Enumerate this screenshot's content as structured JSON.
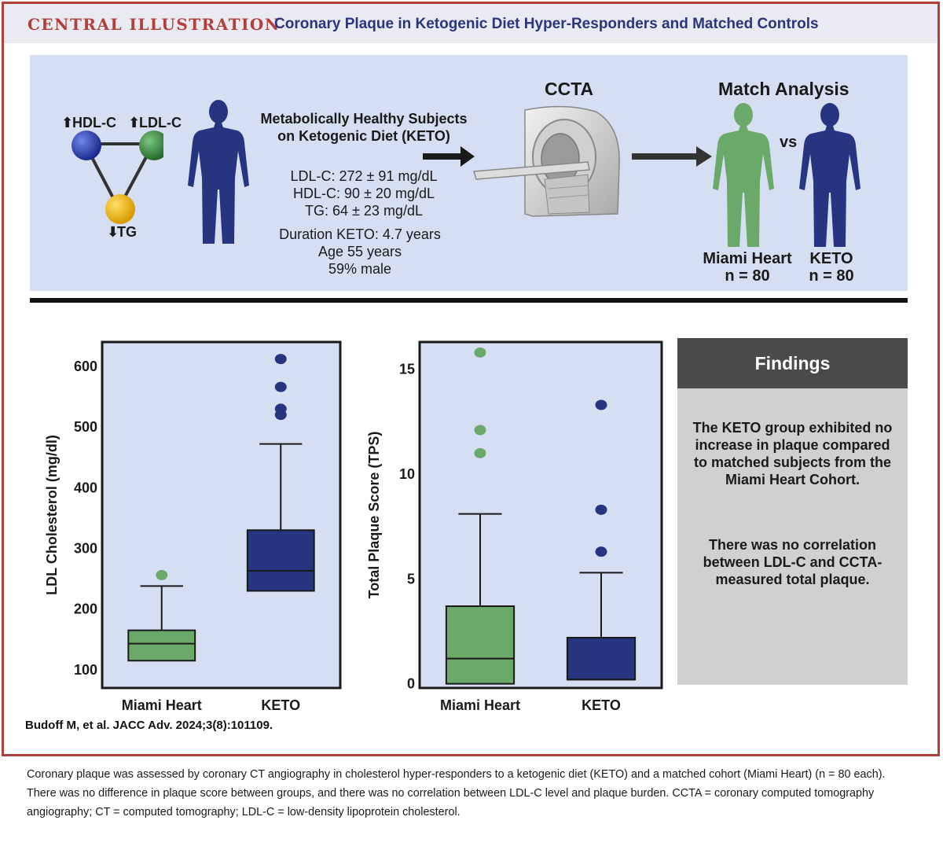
{
  "header": {
    "label": "CENTRAL ILLUSTRATION",
    "title": "Coronary Plaque in Ketogenic Diet Hyper-Responders and Matched Controls"
  },
  "top_panel": {
    "lipids": {
      "hdl": "HDL-C",
      "ldl": "LDL-C",
      "tg": "TG"
    },
    "subjects": {
      "heading_line1": "Metabolically Healthy Subjects",
      "heading_line2": "on Ketogenic Diet (KETO)",
      "ldl": "LDL-C: 272 ± 91 mg/dL",
      "hdl": "HDL-C: 90 ± 20 mg/dL",
      "tg": "TG: 64 ± 23 mg/dL",
      "duration": "Duration KETO:  4.7 years",
      "age": "Age  55 years",
      "male": "59% male"
    },
    "ccta_label": "CCTA",
    "match": {
      "title": "Match Analysis",
      "vs": "vs",
      "group1_name": "Miami Heart",
      "group1_n": "n = 80",
      "group2_name": "KETO",
      "group2_n": "n = 80"
    }
  },
  "colors": {
    "green": "#6aa96a",
    "navy": "#273581",
    "plot_bg": "#d6def2",
    "accent": "#b2403a"
  },
  "chart_data": [
    {
      "type": "box",
      "ylabel": "LDL Cholesterol (mg/dl)",
      "ylim": [
        70,
        640
      ],
      "yticks": [
        100,
        200,
        300,
        400,
        500,
        600
      ],
      "categories": [
        "Miami Heart",
        "KETO"
      ],
      "boxes": [
        {
          "name": "Miami Heart",
          "color": "#6aa96a",
          "whisker_low": 115,
          "q1": 115,
          "median": 143,
          "q3": 165,
          "whisker_high": 238,
          "outliers": [
            256
          ]
        },
        {
          "name": "KETO",
          "color": "#273581",
          "whisker_low": 230,
          "q1": 230,
          "median": 263,
          "q3": 330,
          "whisker_high": 472,
          "outliers": [
            520,
            530,
            566,
            612
          ]
        }
      ]
    },
    {
      "type": "box",
      "ylabel": "Total Plaque Score (TPS)",
      "ylim": [
        -0.2,
        16.3
      ],
      "yticks": [
        0,
        5,
        10,
        15
      ],
      "categories": [
        "Miami Heart",
        "KETO"
      ],
      "boxes": [
        {
          "name": "Miami Heart",
          "color": "#6aa96a",
          "whisker_low": 0,
          "q1": 0,
          "median": 1.2,
          "q3": 3.7,
          "whisker_high": 8.1,
          "outliers": [
            11,
            12.1,
            15.8
          ]
        },
        {
          "name": "KETO",
          "color": "#273581",
          "whisker_low": 0.2,
          "q1": 0.2,
          "median": 0.2,
          "q3": 2.2,
          "whisker_high": 5.3,
          "outliers": [
            6.3,
            8.3,
            13.3
          ]
        }
      ]
    }
  ],
  "findings": {
    "title": "Findings",
    "p1": "The KETO group exhibited no increase in plaque compared to matched subjects from the Miami Heart Cohort.",
    "p2": "There was no correlation between LDL-C and CCTA-measured total plaque."
  },
  "citation": "Budoff M, et al. JACC Adv. 2024;3(8):101109.",
  "caption": "Coronary plaque was assessed by coronary CT angiography in cholesterol hyper-responders to a ketogenic diet (KETO) and a matched cohort (Miami Heart) (n = 80 each). There was no difference in plaque score between groups, and there was no correlation between LDL-C level and plaque burden. CCTA = coronary computed tomography angiography; CT = computed tomography; LDL-C = low-density lipoprotein cholesterol."
}
